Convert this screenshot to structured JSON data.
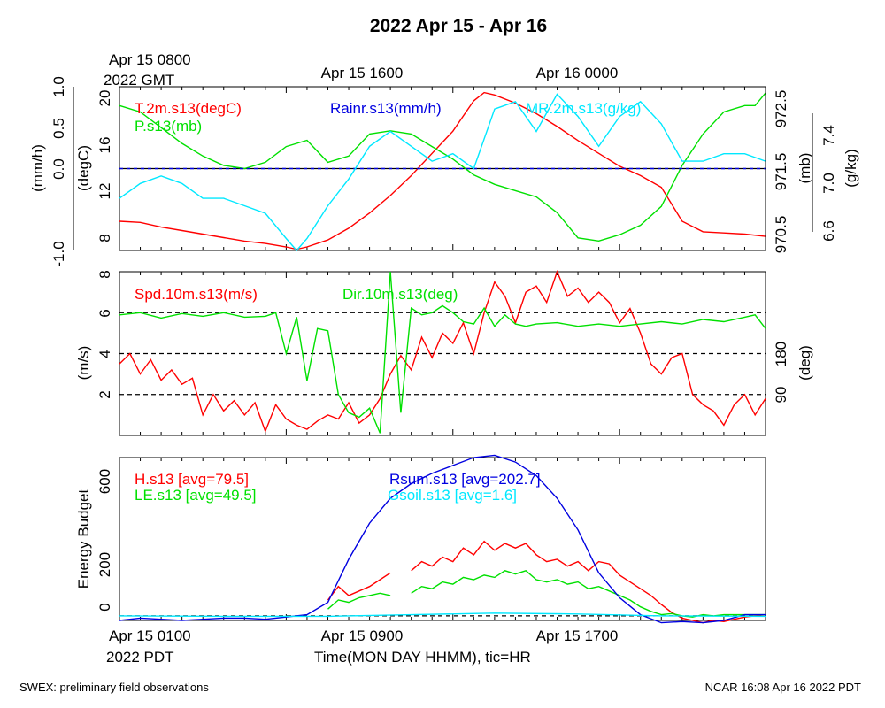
{
  "title": "2022 Apr 15 - Apr 16",
  "top_time_labels": [
    "Apr 15 1600",
    "Apr 16 0000"
  ],
  "top_time_first_label": [
    "Apr 15 0800",
    "2022 GMT"
  ],
  "bottom_time_first_label": [
    "Apr 15 0100",
    "2022 PDT"
  ],
  "bottom_time_labels": [
    "Apr 15 0900",
    "Apr 15 1700"
  ],
  "xlabel": "Time(MON DAY HHMM), tic=HR",
  "footer_left": "SWEX: preliminary field observations",
  "footer_right": "NCAR 16:08 Apr 16 2022 PDT",
  "colors": {
    "red": "#ff0000",
    "green": "#00e000",
    "blue": "#0000e0",
    "cyan": "#00e8ff",
    "black": "#000000"
  },
  "chart_data": [
    {
      "type": "line",
      "panel": "top",
      "x_hours_range": [
        0,
        31
      ],
      "axes": {
        "rain": {
          "label": "(mm/h)",
          "range": [
            -1.0,
            1.0
          ],
          "ticks": [
            "-1.0",
            "0.0",
            "0.5",
            "1.0"
          ]
        },
        "temp": {
          "label": "(degC)",
          "range": [
            7,
            21
          ],
          "ticks": [
            "8",
            "12",
            "16",
            "20"
          ]
        },
        "pres": {
          "label": "(mb)",
          "range": [
            970.25,
            972.85
          ],
          "ticks": [
            "970.5",
            "971.5",
            "972.5"
          ]
        },
        "mr": {
          "label": "(g/kg)",
          "range": [
            6.5,
            7.6
          ],
          "ticks": [
            "6.6",
            "7.0",
            "7.4"
          ]
        }
      },
      "series": [
        {
          "name": "T.2m.s13(degC)",
          "color": "#ff0000",
          "axis": "temp",
          "x": [
            0,
            1,
            2,
            3,
            4,
            5,
            6,
            7,
            8,
            8.5,
            9,
            10,
            11,
            12,
            13,
            14,
            15,
            16,
            16.5,
            17,
            17.5,
            18,
            19,
            20,
            21,
            22,
            23,
            24,
            25,
            26,
            27,
            28,
            29,
            30,
            31
          ],
          "values": [
            9.5,
            9.4,
            9.0,
            8.7,
            8.4,
            8.1,
            7.8,
            7.6,
            7.3,
            7.1,
            7.3,
            7.9,
            8.9,
            10.2,
            11.7,
            13.4,
            15.3,
            17.2,
            18.5,
            19.8,
            20.5,
            20.3,
            19.6,
            18.7,
            17.6,
            16.4,
            15.3,
            14.2,
            13.4,
            12.4,
            9.5,
            8.6,
            8.5,
            8.4,
            8.2
          ]
        },
        {
          "name": "P.s13(mb)",
          "color": "#00e000",
          "axis": "pres",
          "x": [
            0,
            1,
            2,
            3,
            4,
            5,
            6,
            7,
            8,
            9,
            10,
            11,
            12,
            13,
            14,
            15,
            16,
            17,
            18,
            19,
            20,
            21,
            22,
            23,
            24,
            25,
            26,
            27,
            28,
            29,
            30,
            30.5,
            31
          ],
          "values": [
            972.55,
            972.45,
            972.2,
            971.95,
            971.75,
            971.6,
            971.55,
            971.65,
            971.9,
            972.0,
            971.65,
            971.75,
            972.1,
            972.15,
            972.1,
            971.9,
            971.7,
            971.45,
            971.3,
            971.2,
            971.1,
            970.85,
            970.45,
            970.4,
            970.5,
            970.65,
            970.95,
            971.6,
            972.1,
            972.45,
            972.55,
            972.55,
            972.75
          ]
        },
        {
          "name": "Rainr.s13(mm/h)",
          "color": "#0000e0",
          "axis": "rain",
          "x": [
            0,
            31
          ],
          "values": [
            0.0,
            0.0
          ]
        },
        {
          "name": "MR.2m.s13(g/kg)",
          "color": "#00e8ff",
          "axis": "mr",
          "x": [
            0,
            1,
            2,
            3,
            4,
            5,
            6,
            7,
            8,
            8.5,
            9,
            10,
            11,
            12,
            13,
            14,
            15,
            16,
            17,
            18,
            19,
            20,
            21,
            22,
            23,
            24,
            25,
            26,
            27,
            28,
            29,
            30,
            31
          ],
          "values": [
            6.85,
            6.95,
            7.0,
            6.95,
            6.85,
            6.85,
            6.8,
            6.75,
            6.58,
            6.5,
            6.58,
            6.8,
            6.98,
            7.2,
            7.3,
            7.2,
            7.1,
            7.15,
            7.05,
            7.45,
            7.5,
            7.3,
            7.55,
            7.4,
            7.2,
            7.4,
            7.5,
            7.35,
            7.1,
            7.1,
            7.15,
            7.15,
            7.1
          ]
        }
      ]
    },
    {
      "type": "line",
      "panel": "middle",
      "x_hours_range": [
        0,
        31
      ],
      "axes": {
        "spd": {
          "label": "(m/s)",
          "range": [
            0,
            8
          ],
          "ticks": [
            "2",
            "4",
            "6",
            "8"
          ]
        },
        "dir": {
          "label": "(deg)",
          "range": [
            0,
            360
          ],
          "ticks": [
            "90",
            "180"
          ]
        }
      },
      "series": [
        {
          "name": "Spd.10m.s13(m/s)",
          "color": "#ff0000",
          "axis": "spd",
          "x": [
            0,
            0.5,
            1,
            1.5,
            2,
            2.5,
            3,
            3.5,
            4,
            4.5,
            5,
            5.5,
            6,
            6.5,
            7,
            7.5,
            8,
            8.5,
            9,
            9.5,
            10,
            10.5,
            11,
            11.5,
            12,
            12.5,
            13,
            13.5,
            14,
            14.5,
            15,
            15.5,
            16,
            16.5,
            17,
            17.5,
            18,
            18.5,
            19,
            19.5,
            20,
            20.5,
            21,
            21.5,
            22,
            22.5,
            23,
            23.5,
            24,
            24.5,
            25,
            25.5,
            26,
            26.5,
            27,
            27.5,
            28,
            28.5,
            29,
            29.5,
            30,
            30.5,
            31
          ],
          "values": [
            3.5,
            4.0,
            3.0,
            3.7,
            2.7,
            3.2,
            2.5,
            2.8,
            1.0,
            2.0,
            1.2,
            1.7,
            1.0,
            1.6,
            0.2,
            1.5,
            0.8,
            0.5,
            0.3,
            0.7,
            1.0,
            0.8,
            1.6,
            0.6,
            1.0,
            1.8,
            3.0,
            3.9,
            3.2,
            4.8,
            3.8,
            5.0,
            4.5,
            5.5,
            4.0,
            6.0,
            7.5,
            6.8,
            5.5,
            7.0,
            7.3,
            6.5,
            8.0,
            6.8,
            7.2,
            6.5,
            7.0,
            6.5,
            5.5,
            6.2,
            5.0,
            3.5,
            3.0,
            3.8,
            4.0,
            2.0,
            1.5,
            1.2,
            0.5,
            1.5,
            2.0,
            1.0,
            1.8
          ]
        },
        {
          "name": "Dir.10m.s13(deg)",
          "color": "#00e000",
          "axis": "dir",
          "x": [
            0,
            1,
            2,
            3,
            4,
            5,
            6,
            7,
            7.5,
            8,
            8.5,
            9,
            9.5,
            10,
            10.5,
            11,
            11.5,
            12,
            12.5,
            13,
            13.5,
            14,
            14.5,
            15,
            15.5,
            16,
            16.5,
            17,
            17.5,
            18,
            18.5,
            19,
            19.5,
            20,
            21,
            22,
            23,
            24,
            25,
            26,
            27,
            28,
            29,
            30,
            30.5,
            31
          ],
          "values": [
            265,
            270,
            258,
            268,
            262,
            270,
            260,
            262,
            270,
            180,
            260,
            120,
            235,
            230,
            90,
            50,
            40,
            60,
            5,
            360,
            50,
            280,
            265,
            270,
            285,
            270,
            250,
            245,
            280,
            240,
            265,
            245,
            240,
            245,
            248,
            240,
            245,
            240,
            245,
            250,
            245,
            255,
            250,
            260,
            265,
            235
          ]
        }
      ],
      "reference_lines": {
        "dashed_at_spd": [
          2,
          4,
          6
        ]
      }
    },
    {
      "type": "line",
      "panel": "bottom",
      "x_hours_range": [
        0,
        31
      ],
      "axes": {
        "energy": {
          "label": "Energy Budget",
          "range": [
            -20,
            700
          ],
          "ticks": [
            "0",
            "200",
            "600"
          ]
        }
      },
      "series": [
        {
          "name": "H.s13 [avg=79.5]",
          "color": "#ff0000",
          "axis": "energy",
          "x": [
            10,
            10.5,
            11,
            11.5,
            12,
            12.5,
            13
          ],
          "values": [
            70,
            130,
            90,
            110,
            130,
            160,
            190
          ],
          "x2": [
            14,
            14.5,
            15,
            15.5,
            16,
            16.5,
            17,
            17.5,
            18,
            18.5,
            19,
            19.5,
            20,
            20.5,
            21,
            21.5,
            22,
            22.5,
            23,
            23.5,
            24,
            24.5,
            25,
            25.5,
            26,
            26.5,
            27,
            27.5,
            28,
            28.5,
            29,
            29.5,
            30,
            30.5,
            31
          ],
          "values2": [
            200,
            240,
            220,
            260,
            240,
            300,
            270,
            330,
            290,
            320,
            300,
            320,
            270,
            240,
            250,
            220,
            240,
            200,
            240,
            230,
            180,
            150,
            120,
            90,
            50,
            15,
            -10,
            -20,
            -30,
            -20,
            -25,
            -15,
            -5,
            0,
            5
          ]
        },
        {
          "name": "LE.s13 [avg=49.5]",
          "color": "#00e000",
          "axis": "energy",
          "x": [
            10,
            10.5,
            11,
            11.5,
            12,
            12.5,
            13
          ],
          "values": [
            30,
            70,
            60,
            80,
            90,
            100,
            90
          ],
          "x2": [
            14,
            14.5,
            15,
            15.5,
            16,
            16.5,
            17,
            17.5,
            18,
            18.5,
            19,
            19.5,
            20,
            20.5,
            21,
            21.5,
            22,
            22.5,
            23,
            23.5,
            24,
            24.5,
            25,
            25.5,
            26,
            26.5,
            27,
            27.5,
            28,
            28.5,
            29,
            29.5,
            30,
            30.5,
            31
          ],
          "values2": [
            100,
            130,
            120,
            150,
            140,
            170,
            160,
            180,
            170,
            200,
            185,
            200,
            160,
            150,
            160,
            140,
            150,
            120,
            130,
            110,
            90,
            70,
            40,
            20,
            5,
            10,
            0,
            -5,
            5,
            0,
            5,
            5,
            5,
            5,
            5
          ]
        },
        {
          "name": "Rsum.s13 [avg=202.7]",
          "color": "#0000e0",
          "axis": "energy",
          "x": [
            0,
            1,
            2,
            3,
            4,
            5,
            6,
            7,
            8,
            9,
            10,
            11,
            12,
            13,
            14,
            15,
            16,
            17,
            18,
            19,
            20,
            21,
            22,
            23,
            24,
            25,
            26,
            27,
            28,
            29,
            30,
            31
          ],
          "values": [
            -20,
            -10,
            -15,
            -20,
            -15,
            -10,
            -10,
            -15,
            -5,
            5,
            60,
            250,
            410,
            520,
            585,
            630,
            665,
            700,
            710,
            680,
            620,
            520,
            380,
            190,
            80,
            5,
            -30,
            -25,
            -30,
            -20,
            5,
            5
          ]
        },
        {
          "name": "Gsoil.s13 [avg=1.6]",
          "color": "#00e8ff",
          "axis": "energy",
          "x": [
            0,
            5,
            10,
            14,
            18,
            22,
            26,
            31
          ],
          "values": [
            0,
            -2,
            -2,
            5,
            12,
            8,
            0,
            -2
          ]
        }
      ],
      "reference_lines": {
        "dashed_at_energy": [
          0
        ]
      }
    }
  ]
}
